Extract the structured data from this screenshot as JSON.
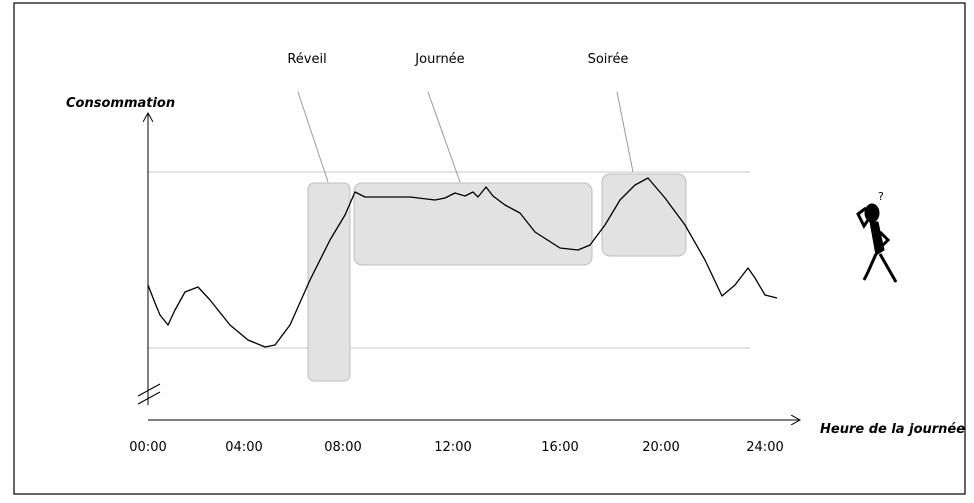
{
  "y_axis": {
    "label": "Consommation"
  },
  "x_axis": {
    "label": "Heure de la journée",
    "ticks": [
      "00:00",
      "04:00",
      "08:00",
      "12:00",
      "16:00",
      "20:00",
      "24:00"
    ]
  },
  "periods": [
    {
      "label": "Réveil"
    },
    {
      "label": "Journée"
    },
    {
      "label": "Soirée"
    }
  ]
}
